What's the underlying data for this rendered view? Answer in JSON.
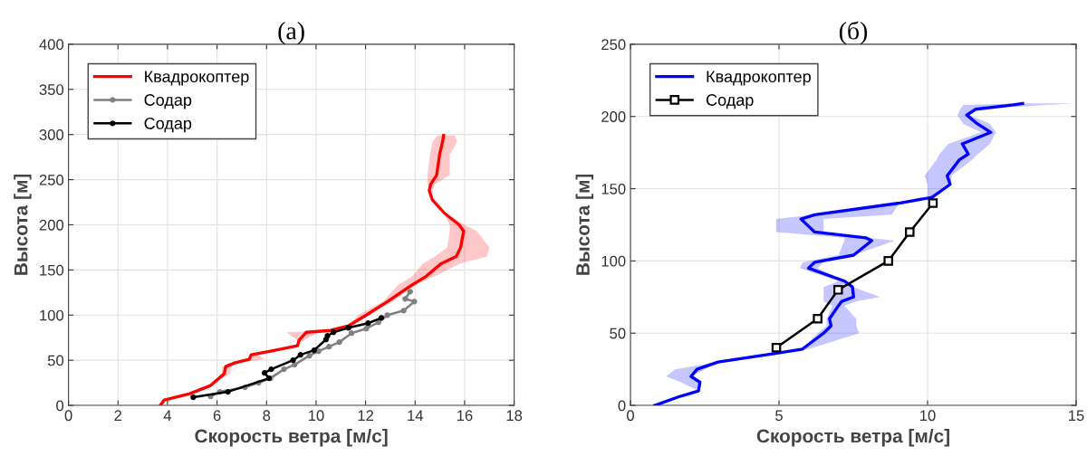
{
  "chart_data": [
    {
      "type": "line",
      "orientation": "horizontal",
      "title": "(а)",
      "xlabel": "Скорость ветра [м/с]",
      "ylabel": "Высота [м]",
      "xlim": [
        0,
        18
      ],
      "xticks": [
        0,
        2,
        4,
        6,
        8,
        10,
        12,
        14,
        16,
        18
      ],
      "ylim": [
        0,
        400
      ],
      "yticks": [
        0,
        50,
        100,
        150,
        200,
        250,
        300,
        350,
        400
      ],
      "grid": true,
      "legend": "top left",
      "series": [
        {
          "name": "Квадрокоптер",
          "color": "#ff0000",
          "marker": "none",
          "values": [
            3.71,
            3.87,
            4.9,
            5.74,
            6.29,
            6.35,
            6.71,
            7.3,
            7.38,
            8.16,
            9.25,
            9.31,
            9.61,
            10.58,
            11.3,
            12.03,
            12.88,
            13.85,
            14.45,
            15.05,
            15.66,
            15.84,
            15.96,
            15.78,
            15.18,
            14.69,
            14.57,
            14.63,
            14.87,
            14.99,
            15.11,
            15.15
          ],
          "x": [
            0,
            6,
            13,
            22,
            35,
            43,
            47,
            51,
            56,
            60,
            66,
            72,
            81,
            83,
            88,
            100,
            115,
            133,
            143,
            157,
            165,
            175,
            193,
            200,
            213,
            228,
            238,
            245,
            255,
            278,
            292,
            299
          ],
          "lower": [
            3.71,
            3.87,
            4.9,
            5.74,
            6.2,
            6.2,
            6.71,
            7.3,
            7.38,
            8.16,
            9.25,
            9.25,
            8.8,
            10.58,
            11.3,
            11.7,
            12.7,
            13.3,
            13.9,
            14.3,
            14.8,
            15.3,
            15.4,
            15.4,
            15.18,
            14.69,
            14.57,
            14.5,
            14.5,
            14.6,
            14.7,
            14.9
          ],
          "upper": [
            3.71,
            3.87,
            4.9,
            5.74,
            6.5,
            6.6,
            6.71,
            7.9,
            7.7,
            8.16,
            9.25,
            9.5,
            10.1,
            10.58,
            11.3,
            12.1,
            13.1,
            14.0,
            14.8,
            15.8,
            16.9,
            17.0,
            16.5,
            16.0,
            15.18,
            14.69,
            14.7,
            14.8,
            15.4,
            15.4,
            15.7,
            15.6
          ]
        },
        {
          "name": "Содар",
          "color": "#808080",
          "marker": "circle",
          "values": [
            5.74,
            6.11,
            7.13,
            7.68,
            8.16,
            8.7,
            9.13,
            9.73,
            10.1,
            10.52,
            10.94,
            11.43,
            12.03,
            12.52,
            12.88,
            13.54,
            13.97,
            13.6,
            13.8
          ],
          "x": [
            10,
            15,
            20,
            25,
            30,
            40,
            45,
            55,
            60,
            65,
            70,
            80,
            85,
            92,
            100,
            105,
            115,
            118,
            126
          ]
        },
        {
          "name": "Содар",
          "color": "#000000",
          "marker": "circle",
          "values": [
            5.04,
            6.44,
            8.1,
            7.92,
            8.19,
            9.07,
            9.37,
            9.92,
            10.4,
            10.46,
            10.7,
            11.31,
            12.1,
            12.64
          ],
          "x": [
            9,
            15,
            30,
            36,
            40,
            50,
            56,
            61,
            73,
            77,
            81,
            86,
            91,
            97
          ]
        }
      ]
    },
    {
      "type": "line",
      "orientation": "horizontal",
      "title": "(б)",
      "xlabel": "Скорость ветра [м/с]",
      "ylabel": "Высота [м]",
      "xlim": [
        0,
        15
      ],
      "xticks": [
        0,
        5,
        10,
        15
      ],
      "ylim": [
        0,
        250
      ],
      "yticks": [
        0,
        50,
        100,
        150,
        200,
        250
      ],
      "grid": true,
      "legend": "top left",
      "series": [
        {
          "name": "Квадрокоптер",
          "color": "#0000ff",
          "marker": "none",
          "values": [
            0.82,
            1.63,
            2.29,
            2.34,
            2.04,
            2.24,
            2.95,
            4.88,
            5.79,
            6.5,
            6.75,
            6.7,
            7.0,
            7.11,
            7.51,
            7.47,
            7.21,
            5.99,
            6.2,
            7.51,
            8.12,
            7.92,
            6.2,
            5.74,
            6.2,
            9.04,
            10.15,
            10.76,
            10.66,
            11.07,
            11.37,
            11.17,
            12.13,
            11.67,
            11.32,
            11.62,
            12.89,
            13.2
          ],
          "x": [
            0,
            6,
            10,
            16,
            20,
            25,
            30,
            36,
            39,
            50,
            55,
            60,
            69,
            72,
            75,
            82,
            86,
            95,
            99,
            104,
            114,
            116,
            120,
            129,
            132,
            140,
            144,
            153,
            159,
            170,
            174,
            181,
            189,
            195,
            201,
            205,
            208,
            209
          ],
          "lower": [
            0.82,
            1.63,
            2.29,
            1.7,
            1.2,
            1.5,
            2.95,
            4.7,
            5.79,
            6.3,
            6.6,
            6.6,
            6.8,
            6.5,
            6.5,
            6.5,
            7.0,
            5.7,
            5.8,
            7.0,
            7.2,
            7.2,
            4.9,
            4.9,
            6.2,
            9.04,
            10.0,
            10.0,
            9.9,
            10.3,
            10.4,
            10.7,
            11.8,
            11.2,
            11.0,
            11.1,
            11.2,
            13.2
          ],
          "upper": [
            0.82,
            1.63,
            2.29,
            2.34,
            2.04,
            2.5,
            2.95,
            4.88,
            6.0,
            7.7,
            7.6,
            7.6,
            7.2,
            7.6,
            8.4,
            7.5,
            7.21,
            6.3,
            6.5,
            7.51,
            8.9,
            8.0,
            6.5,
            6.5,
            8.8,
            9.04,
            10.2,
            10.8,
            10.8,
            11.5,
            11.7,
            12.1,
            12.3,
            12.1,
            11.4,
            11.62,
            14.0,
            15.0
          ]
        },
        {
          "name": "Содар",
          "color": "#000000",
          "marker": "square",
          "values": [
            4.91,
            6.3,
            6.99,
            8.68,
            9.4,
            10.18
          ],
          "x": [
            40,
            60,
            80,
            100,
            120,
            140
          ]
        }
      ]
    }
  ]
}
